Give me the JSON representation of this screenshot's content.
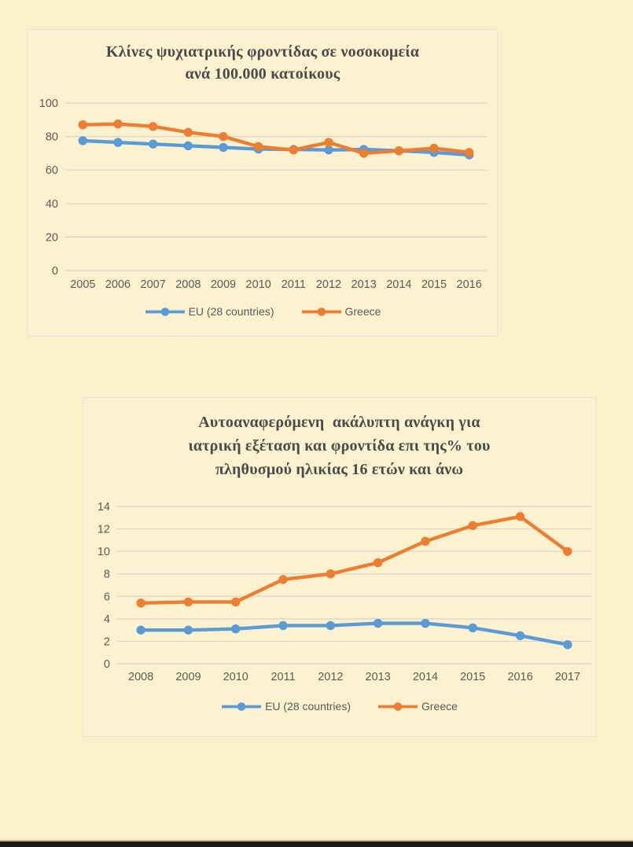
{
  "page": {
    "background": "#FCF0C9",
    "bottom_bar_color": "#1B1B1B"
  },
  "colors": {
    "eu_blue": "#5B9BD5",
    "greece_orange": "#ED7D31",
    "gridline": "#D8D4CA",
    "tick_label": "#5E5A52",
    "title_text": "#4B4A48"
  },
  "chart_data": [
    {
      "type": "line",
      "title": "Κλίνες ψυχιατρικής φροντίδας σε νοσοκομεία\nανά 100.000 κατοίκους",
      "categories": [
        "2005",
        "2006",
        "2007",
        "2008",
        "2009",
        "2010",
        "2011",
        "2012",
        "2013",
        "2014",
        "2015",
        "2016"
      ],
      "series": [
        {
          "name": "EU (28 countries)",
          "color": "#5B9BD5",
          "values": [
            77.5,
            76.5,
            75.5,
            74.5,
            73.5,
            72.5,
            72.3,
            72.0,
            72.3,
            71.5,
            70.5,
            69.0
          ]
        },
        {
          "name": "Greece",
          "color": "#ED7D31",
          "values": [
            87.0,
            87.5,
            86.0,
            82.5,
            80.0,
            74.0,
            72.0,
            76.5,
            70.0,
            71.5,
            73.0,
            70.5
          ]
        }
      ],
      "ylim": [
        0,
        100
      ],
      "ytick_step": 20,
      "ytick_labels": [
        "100",
        "80",
        "60",
        "40",
        "20",
        "0"
      ],
      "grid": true,
      "legend_position": "bottom"
    },
    {
      "type": "line",
      "title": "Αυτοαναφερόμενη  ακάλυπτη ανάγκη για\nιατρική εξέταση και φροντίδα επι της% του\nπληθυσμού ηλικίας 16 ετών και άνω",
      "categories": [
        "2008",
        "2009",
        "2010",
        "2011",
        "2012",
        "2013",
        "2014",
        "2015",
        "2016",
        "2017"
      ],
      "series": [
        {
          "name": "EU (28 countries)",
          "color": "#5B9BD5",
          "values": [
            3.0,
            3.0,
            3.1,
            3.4,
            3.4,
            3.6,
            3.6,
            3.2,
            2.5,
            1.7
          ]
        },
        {
          "name": "Greece",
          "color": "#ED7D31",
          "values": [
            5.4,
            5.5,
            5.5,
            7.5,
            8.0,
            9.0,
            10.9,
            12.3,
            13.1,
            10.0
          ]
        }
      ],
      "ylim": [
        0,
        14
      ],
      "ytick_step": 2,
      "ytick_labels": [
        "14",
        "12",
        "10",
        "8",
        "6",
        "4",
        "2",
        "0"
      ],
      "grid": true,
      "legend_position": "bottom"
    }
  ]
}
